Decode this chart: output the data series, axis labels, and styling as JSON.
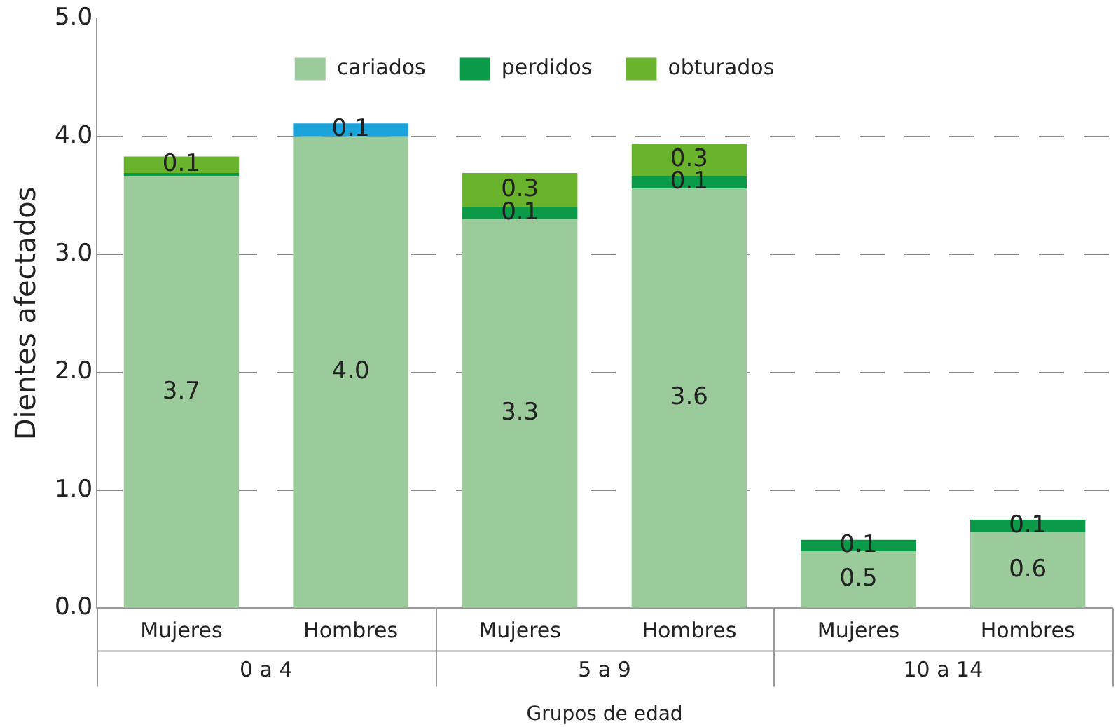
{
  "chart_data": {
    "type": "bar",
    "stacked": true,
    "ylabel": "Dientes afectados",
    "xlabel": "Grupos de edad",
    "categories": [
      "Mujeres",
      "Hombres",
      "Mujeres",
      "Hombres",
      "Mujeres",
      "Hombres"
    ],
    "annotations": [
      "0 a 4",
      "5 a 9",
      "10 a 14"
    ],
    "series": [
      {
        "name": "cariados",
        "color": "#9bcb9b",
        "values": [
          3.66,
          4.0,
          3.3,
          3.56,
          0.48,
          0.64
        ],
        "value_labels": [
          "3.7",
          "4.0",
          "3.3",
          "3.6",
          "0.5",
          "0.6"
        ]
      },
      {
        "name": "perdidos",
        "color": "#0a9a48",
        "values": [
          0.03,
          null,
          0.1,
          0.1,
          0.1,
          0.11
        ],
        "value_labels": [
          null,
          null,
          "0.1",
          "0.1",
          "0.1",
          "0.1"
        ]
      },
      {
        "name": "obturados",
        "color": "#6ab42d",
        "colors": [
          "#6ab42d",
          "#1ba3dc",
          "#6ab42d",
          "#6ab42d",
          null,
          null
        ],
        "values": [
          0.14,
          0.11,
          0.29,
          0.28,
          null,
          null
        ],
        "value_labels": [
          "0.1",
          "0.1",
          "0.3",
          "0.3",
          null,
          null
        ]
      }
    ],
    "ylim": [
      0,
      5
    ],
    "yticks": [
      {
        "value": 0,
        "label": "0.0"
      },
      {
        "value": 1,
        "label": "1.0"
      },
      {
        "value": 2,
        "label": "2.0"
      },
      {
        "value": 3,
        "label": "3.0"
      },
      {
        "value": 4,
        "label": "4.0"
      },
      {
        "value": 5,
        "label": "5.0"
      }
    ],
    "grid": "y",
    "legend": "top"
  }
}
